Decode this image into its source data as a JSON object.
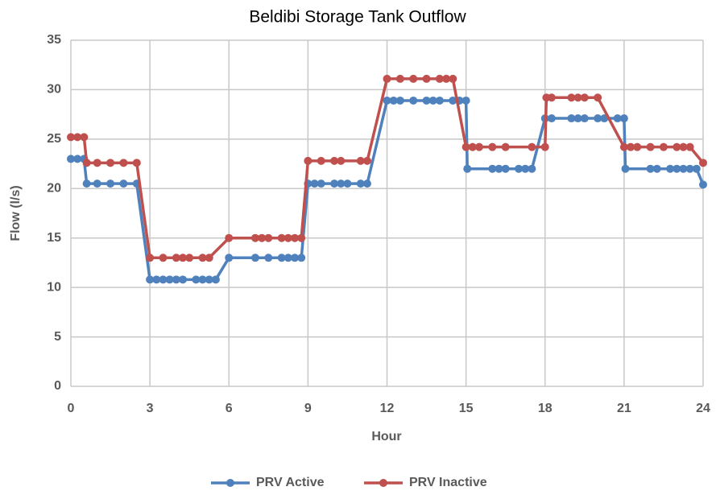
{
  "chart_data": {
    "type": "line",
    "title": "Beldibi Storage Tank Outflow",
    "xlabel": "Hour",
    "ylabel": "Flow (l/s)",
    "xlim": [
      0,
      24
    ],
    "xticks": [
      0,
      3,
      6,
      9,
      12,
      15,
      18,
      21,
      24
    ],
    "ylim": [
      0,
      35
    ],
    "yticks": [
      0,
      5,
      10,
      15,
      20,
      25,
      30,
      35
    ],
    "grid": true,
    "legend": "bottom",
    "series": [
      {
        "name": "PRV Active",
        "color": "#4f81bd",
        "x": [
          0,
          0.25,
          0.5,
          0.6,
          1,
          1.5,
          2,
          2.5,
          3,
          3.25,
          3.5,
          3.75,
          4,
          4.25,
          4.75,
          5,
          5.25,
          5.5,
          6,
          7,
          7.5,
          8,
          8.25,
          8.5,
          8.75,
          9,
          9.25,
          9.5,
          10,
          10.25,
          10.5,
          11,
          11.25,
          12,
          12.25,
          12.5,
          13,
          13.5,
          13.75,
          14,
          14.5,
          14.75,
          15,
          15.05,
          16,
          16.25,
          16.5,
          17,
          17.25,
          17.5,
          18,
          18.25,
          19,
          19.25,
          19.5,
          20,
          20.25,
          20.75,
          21,
          21.05,
          22,
          22.25,
          22.75,
          23,
          23.25,
          23.5,
          23.75,
          24
        ],
        "values": [
          23,
          23,
          23,
          20.5,
          20.5,
          20.5,
          20.5,
          20.5,
          10.8,
          10.8,
          10.8,
          10.8,
          10.8,
          10.8,
          10.8,
          10.8,
          10.8,
          10.8,
          13,
          13,
          13,
          13,
          13,
          13,
          13,
          20.5,
          20.5,
          20.5,
          20.5,
          20.5,
          20.5,
          20.5,
          20.5,
          28.9,
          28.9,
          28.9,
          28.9,
          28.9,
          28.9,
          28.9,
          28.9,
          28.9,
          28.9,
          22,
          22,
          22,
          22,
          22,
          22,
          22,
          27.1,
          27.1,
          27.1,
          27.1,
          27.1,
          27.1,
          27.1,
          27.1,
          27.1,
          22,
          22,
          22,
          22,
          22,
          22,
          22,
          22,
          20.4
        ]
      },
      {
        "name": "PRV Inactive",
        "color": "#c0504d",
        "x": [
          0,
          0.25,
          0.5,
          0.6,
          1,
          1.5,
          2,
          2.5,
          3,
          3.5,
          4,
          4.25,
          4.5,
          5,
          5.25,
          6,
          7,
          7.25,
          7.5,
          8,
          8.25,
          8.5,
          8.75,
          9,
          9.5,
          10,
          10.25,
          11,
          11.25,
          12,
          12.5,
          13,
          13.5,
          14,
          14.25,
          14.5,
          15,
          15.25,
          15.5,
          16,
          16.5,
          17.5,
          18,
          18.05,
          18.25,
          19,
          19.25,
          19.5,
          20,
          21,
          21.25,
          21.5,
          22,
          22.5,
          23,
          23.25,
          23.5,
          24
        ],
        "values": [
          25.2,
          25.2,
          25.2,
          22.6,
          22.6,
          22.6,
          22.6,
          22.6,
          13,
          13,
          13,
          13,
          13,
          13,
          13,
          15,
          15,
          15,
          15,
          15,
          15,
          15,
          15,
          22.8,
          22.8,
          22.8,
          22.8,
          22.8,
          22.8,
          31.1,
          31.1,
          31.1,
          31.1,
          31.1,
          31.1,
          31.1,
          24.2,
          24.2,
          24.2,
          24.2,
          24.2,
          24.2,
          24.2,
          29.2,
          29.2,
          29.2,
          29.2,
          29.2,
          29.2,
          24.2,
          24.2,
          24.2,
          24.2,
          24.2,
          24.2,
          24.2,
          24.2,
          22.6
        ]
      }
    ]
  }
}
